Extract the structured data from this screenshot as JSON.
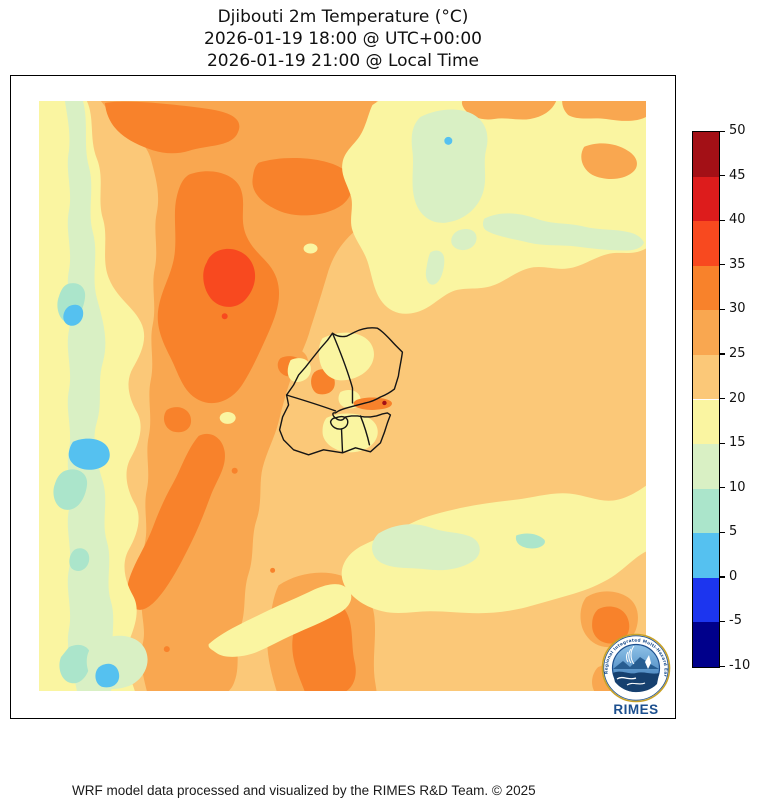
{
  "title": {
    "line1": "Djibouti 2m Temperature (°C)",
    "line2": "2026-01-19 18:00 @ UTC+00:00",
    "line3": "2026-01-19 21:00 @ Local Time"
  },
  "map": {
    "region": "Djibouti",
    "variable": "2m Temperature",
    "units": "°C",
    "overlay": "Djibouti administrative region boundaries"
  },
  "colorbar": {
    "levels": [
      -10,
      -5,
      0,
      5,
      10,
      15,
      20,
      25,
      30,
      35,
      40,
      45,
      50
    ],
    "tick_labels": [
      "50",
      "45",
      "40",
      "35",
      "30",
      "25",
      "20",
      "15",
      "10",
      "5",
      "0",
      "-5",
      "-10"
    ],
    "colors": [
      "#00008b",
      "#1c35ef",
      "#55c1f0",
      "#abe5cb",
      "#d9f0c4",
      "#faf5a1",
      "#fbc878",
      "#f9a750",
      "#f8822b",
      "#f8491f",
      "#dd1c1c",
      "#a31016"
    ]
  },
  "logo": {
    "name": "RIMES",
    "motto": "Regional Integrated Multi-Hazard Early Warning System",
    "accent": "#1c4f8e"
  },
  "footer": {
    "credit": "WRF model data processed and visualized by the RIMES R&D Team. © 2025"
  }
}
